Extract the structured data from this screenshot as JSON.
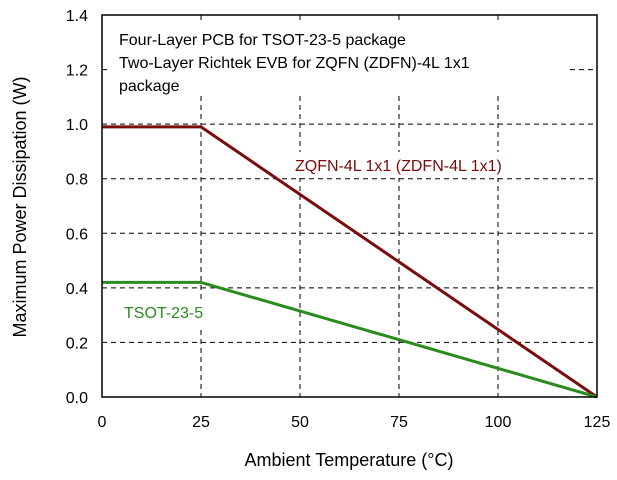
{
  "chart_data": {
    "type": "line",
    "xlabel": "Ambient Temperature (°C)",
    "ylabel": "Maximum Power Dissipation (W)",
    "xlim": [
      0,
      125
    ],
    "ylim": [
      0,
      1.4
    ],
    "x_ticks": [
      0,
      25,
      50,
      75,
      100,
      125
    ],
    "y_ticks": [
      0.0,
      0.2,
      0.4,
      0.6,
      0.8,
      1.0,
      1.2,
      1.4
    ],
    "x_tick_labels": [
      "0",
      "25",
      "50",
      "75",
      "100",
      "125"
    ],
    "y_tick_labels": [
      "0.0",
      "0.2",
      "0.4",
      "0.6",
      "0.8",
      "1.0",
      "1.2",
      "1.4"
    ],
    "grid": "vertical and horizontal dashed",
    "annotation_lines": [
      "Four-Layer PCB for TSOT-23-5 package",
      "Two-Layer Richtek EVB for ZQFN (ZDFN)-4L 1x1",
      "package"
    ],
    "series": [
      {
        "name": "ZQFN-4L 1x1 (ZDFN-4L 1x1)",
        "color": "#7b0c0c",
        "x": [
          0,
          25,
          125
        ],
        "y": [
          0.99,
          0.99,
          0.0
        ]
      },
      {
        "name": "TSOT-23-5",
        "color": "#2a8c1e",
        "x": [
          0,
          25,
          125
        ],
        "y": [
          0.42,
          0.42,
          0.0
        ]
      }
    ]
  }
}
